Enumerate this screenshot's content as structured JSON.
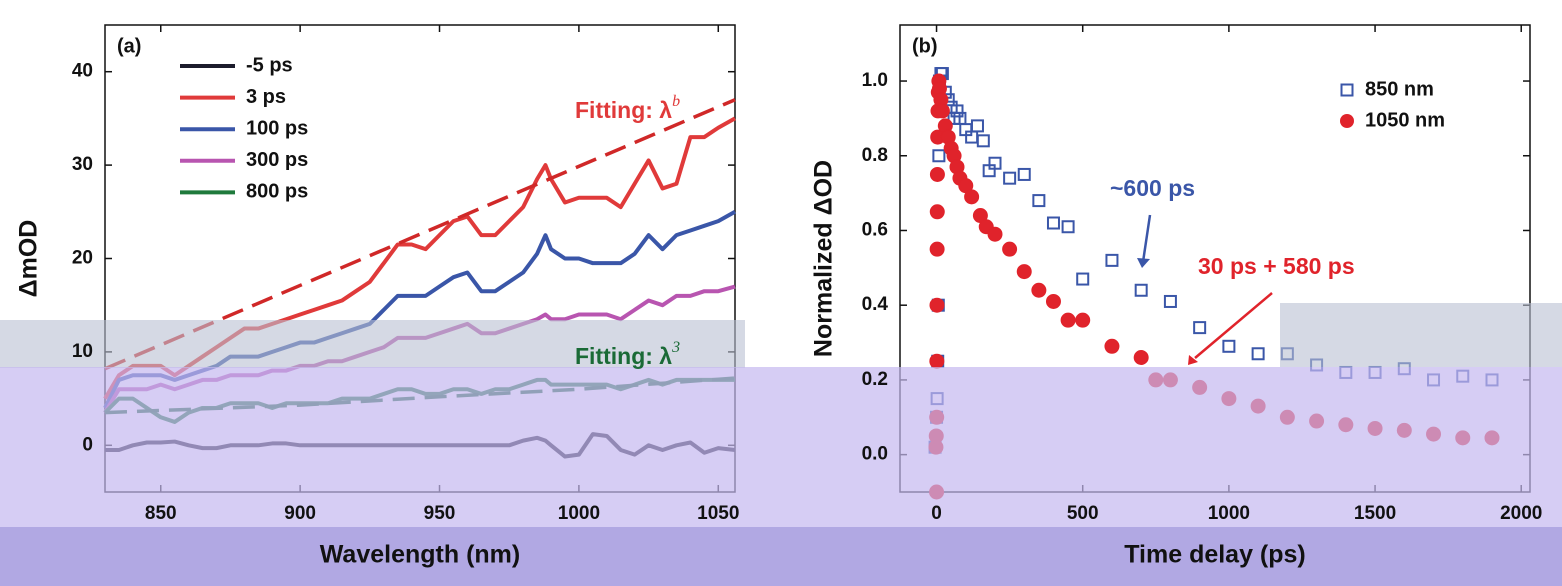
{
  "chart_data": [
    {
      "type": "line",
      "panel_label": "(a)",
      "x_label": "Wavelength (nm)",
      "y_label": "ΔmOD",
      "xlim": [
        830,
        1056
      ],
      "ylim": [
        -5,
        45
      ],
      "xticks": [
        850,
        900,
        950,
        1000,
        1050
      ],
      "yticks": [
        0,
        10,
        20,
        30,
        40
      ],
      "legend": "upper left",
      "x": [
        830,
        835,
        840,
        845,
        850,
        855,
        860,
        865,
        870,
        875,
        880,
        885,
        890,
        895,
        900,
        905,
        910,
        915,
        920,
        925,
        930,
        935,
        940,
        945,
        950,
        955,
        960,
        965,
        970,
        975,
        980,
        985,
        988,
        990,
        995,
        1000,
        1005,
        1010,
        1015,
        1020,
        1025,
        1030,
        1035,
        1040,
        1045,
        1050,
        1056
      ],
      "series": [
        {
          "name": "-5 ps",
          "color": "#1c1c2c",
          "values": [
            -0.5,
            -0.5,
            0,
            0.3,
            0.3,
            0.4,
            0,
            -0.3,
            -0.3,
            0,
            0,
            0,
            0.2,
            0.2,
            0,
            0,
            0,
            0,
            0,
            0,
            0,
            0,
            0,
            0,
            0,
            0,
            0,
            0,
            0,
            0,
            0.5,
            0.8,
            0.5,
            0,
            -1.2,
            -1,
            1.2,
            1,
            -0.5,
            -1,
            0,
            -0.5,
            0,
            0.3,
            -0.8,
            -0.3,
            -0.5
          ]
        },
        {
          "name": "3 ps",
          "color": "#e03a3a",
          "values": [
            5,
            7.5,
            8.5,
            8.5,
            8.5,
            7.5,
            8.5,
            9.5,
            10.5,
            11.5,
            12.5,
            12.5,
            13,
            13.5,
            14,
            14.5,
            15,
            15.5,
            16.5,
            17.5,
            19.5,
            21.5,
            21.5,
            21,
            22.5,
            24,
            24.5,
            22.5,
            22.5,
            24,
            25.5,
            28.5,
            30,
            28.5,
            26,
            26.5,
            26.5,
            26.5,
            25.5,
            28,
            30.5,
            27.5,
            28,
            33,
            33,
            34,
            35
          ]
        },
        {
          "name": "100 ps",
          "color": "#3a56a8",
          "values": [
            4,
            7,
            7.5,
            7.5,
            7.5,
            7,
            7.5,
            8,
            8.5,
            9.5,
            9.5,
            9.5,
            10,
            10.5,
            11,
            11,
            11.5,
            12,
            12.5,
            13,
            14.5,
            16,
            16,
            16,
            17,
            18,
            18.5,
            16.5,
            16.5,
            17.5,
            18.5,
            20.5,
            22.5,
            21,
            20,
            20,
            19.5,
            19.5,
            19.5,
            20.5,
            22.5,
            21,
            22.5,
            23,
            23.5,
            24,
            25
          ]
        },
        {
          "name": "300 ps",
          "color": "#b855b0",
          "values": [
            3.5,
            6,
            6,
            6,
            6.5,
            6,
            6.5,
            7,
            7,
            7.5,
            7.5,
            7.5,
            8,
            8,
            8.5,
            8.5,
            9,
            9,
            9.5,
            10,
            10.5,
            11.5,
            11.5,
            11.5,
            12,
            12.5,
            13,
            12,
            12,
            12.5,
            13,
            13.5,
            14,
            13.5,
            13.5,
            14,
            14,
            14,
            13.5,
            14.5,
            15.5,
            15,
            16,
            16,
            16.5,
            16.5,
            17
          ]
        },
        {
          "name": "800 ps",
          "color": "#1f7a3c",
          "values": [
            3.5,
            5,
            5,
            4,
            3,
            2.5,
            3.5,
            4,
            4,
            4.5,
            4.5,
            4.5,
            4,
            4.5,
            4.5,
            4.5,
            4.5,
            5,
            5,
            5,
            5.5,
            6,
            6,
            5.5,
            5.5,
            6,
            6,
            5.5,
            6,
            6,
            6.5,
            7,
            7,
            6.5,
            6.5,
            6.5,
            6.5,
            6.5,
            6,
            6.5,
            7,
            6.5,
            7,
            7,
            7,
            7,
            7
          ]
        },
        {
          "color": "#d02828",
          "dash": true,
          "x": [
            830,
            1056
          ],
          "values": [
            8.2,
            37
          ]
        },
        {
          "color": "#1a6a36",
          "dash": true,
          "x": [
            830,
            900,
            950,
            1000,
            1056
          ],
          "values": [
            3.5,
            4.3,
            5.2,
            6,
            7.2
          ]
        }
      ],
      "annotations": [
        {
          "text": "Fitting: λ",
          "sup": "b",
          "color": "#e03a3a"
        },
        {
          "text": "Fitting: λ",
          "sup": "3",
          "color": "#1a6a36"
        }
      ]
    },
    {
      "type": "scatter",
      "panel_label": "(b)",
      "x_label": "Time delay (ps)",
      "y_label": "Normalized ΔOD",
      "xlim": [
        -125,
        2030
      ],
      "ylim": [
        -0.1,
        1.15
      ],
      "xticks": [
        0,
        500,
        1000,
        1500,
        2000
      ],
      "yticks": [
        {
          "value": 0,
          "label": "0.0"
        },
        {
          "value": 0.2,
          "label": "0.2"
        },
        {
          "value": 0.4,
          "label": "0.4"
        },
        {
          "value": 0.6,
          "label": "0.6"
        },
        {
          "value": 0.8,
          "label": "0.8"
        },
        {
          "value": 1,
          "label": "1.0"
        }
      ],
      "legend": "upper right",
      "series": [
        {
          "name": "850 nm",
          "color": "#3a56a8",
          "marker": "square",
          "filled": false,
          "x": [
            -5,
            0,
            2,
            4,
            6,
            8,
            10,
            15,
            20,
            30,
            40,
            50,
            60,
            70,
            80,
            100,
            120,
            140,
            160,
            180,
            200,
            250,
            300,
            350,
            400,
            450,
            500,
            600,
            700,
            800,
            900,
            1000,
            1100,
            1200,
            1300,
            1400,
            1500,
            1600,
            1700,
            1800,
            1900
          ],
          "values": [
            0.02,
            0.1,
            0.15,
            0.25,
            0.4,
            0.8,
            1.0,
            1.02,
            1.02,
            0.97,
            0.95,
            0.93,
            0.9,
            0.92,
            0.9,
            0.87,
            0.85,
            0.88,
            0.84,
            0.76,
            0.78,
            0.74,
            0.75,
            0.68,
            0.62,
            0.61,
            0.47,
            0.52,
            0.44,
            0.41,
            0.34,
            0.29,
            0.27,
            0.27,
            0.24,
            0.22,
            0.22,
            0.23,
            0.2,
            0.21,
            0.2
          ]
        },
        {
          "name": "1050 nm",
          "color": "#e0232b",
          "marker": "circle",
          "filled": true,
          "x": [
            -2,
            -1,
            0,
            0.5,
            1,
            1.5,
            2,
            2.5,
            3,
            4,
            5,
            6,
            8,
            10,
            15,
            20,
            30,
            40,
            50,
            60,
            70,
            80,
            100,
            120,
            150,
            170,
            200,
            250,
            300,
            350,
            400,
            450,
            500,
            600,
            700,
            750,
            800,
            900,
            1000,
            1100,
            1200,
            1300,
            1400,
            1500,
            1600,
            1700,
            1800,
            1900
          ],
          "values": [
            0.02,
            0.05,
            -0.1,
            0.1,
            0.25,
            0.4,
            0.55,
            0.65,
            0.75,
            0.85,
            0.92,
            0.97,
            1.0,
            0.98,
            0.95,
            0.92,
            0.88,
            0.85,
            0.82,
            0.8,
            0.77,
            0.74,
            0.72,
            0.69,
            0.64,
            0.61,
            0.59,
            0.55,
            0.49,
            0.44,
            0.41,
            0.36,
            0.36,
            0.29,
            0.26,
            0.2,
            0.2,
            0.18,
            0.15,
            0.13,
            0.1,
            0.09,
            0.08,
            0.07,
            0.065,
            0.055,
            0.045,
            0.045
          ]
        }
      ],
      "annotations": [
        {
          "text": "~600 ps",
          "color": "#3a56a8"
        },
        {
          "text": "30 ps + 580 ps",
          "color": "#e0232b"
        }
      ]
    }
  ]
}
